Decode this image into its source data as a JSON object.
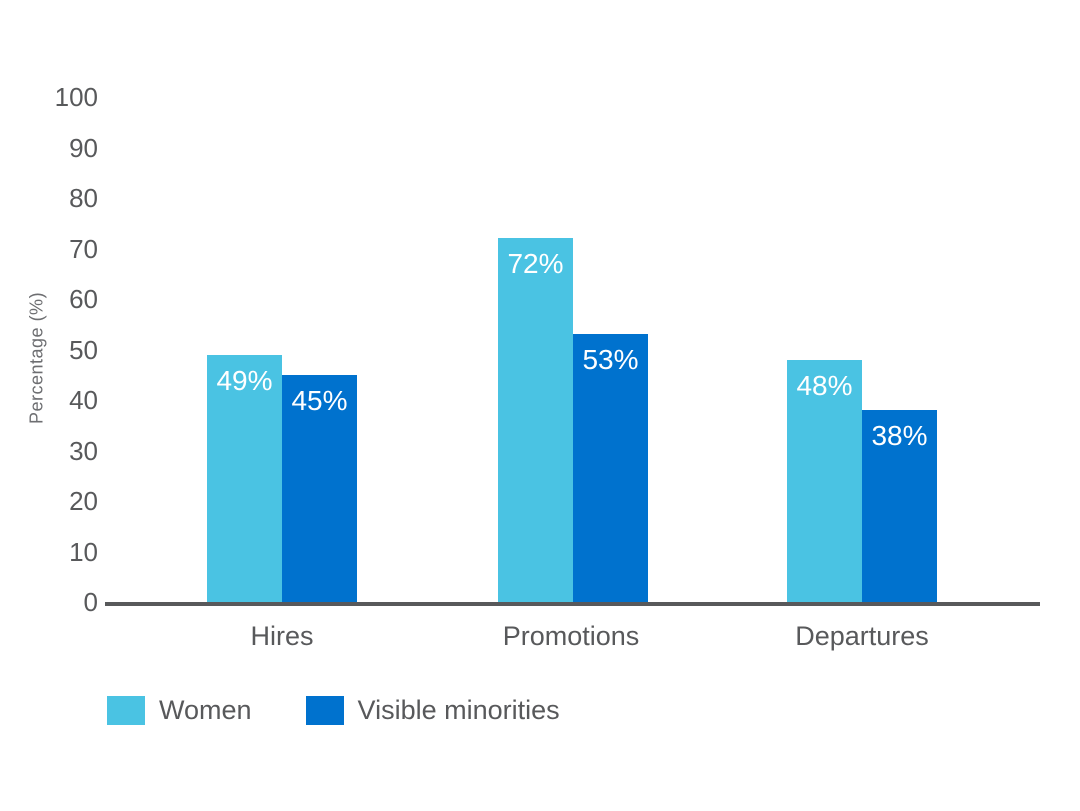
{
  "chart_data": {
    "type": "bar",
    "title": "",
    "categories": [
      "Hires",
      "Promotions",
      "Departures"
    ],
    "series": [
      {
        "name": "Women",
        "color": "#4AC3E3",
        "values": [
          49,
          72,
          48
        ],
        "labels": [
          "49%",
          "72%",
          "48%"
        ]
      },
      {
        "name": "Visible minorities",
        "color": "#0072CE",
        "values": [
          45,
          53,
          38
        ],
        "labels": [
          "45%",
          "53%",
          "38%"
        ]
      }
    ],
    "xlabel": "",
    "ylabel": "Percentage (%)",
    "ylim": [
      0,
      100
    ],
    "yticks": [
      0,
      10,
      20,
      30,
      40,
      50,
      60,
      70,
      80,
      90,
      100
    ],
    "grid": false,
    "legend_position": "bottom-left",
    "data_label_color": "#ffffff",
    "axis_line_color": "#58595B",
    "text_color": "#58595B"
  }
}
